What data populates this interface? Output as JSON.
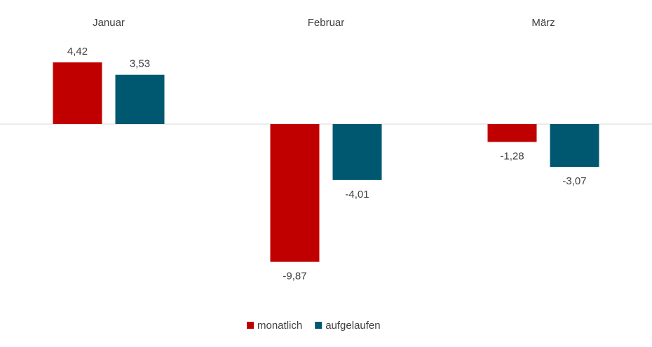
{
  "chart_data": {
    "type": "bar",
    "categories": [
      "Januar",
      "Februar",
      "März"
    ],
    "series": [
      {
        "name": "monatlich",
        "color": "#c00000",
        "values": [
          4.42,
          -9.87,
          -1.28
        ],
        "value_labels": [
          "4,42",
          "-9,87",
          "-1,28"
        ]
      },
      {
        "name": "aufgelaufen",
        "color": "#005870",
        "values": [
          3.53,
          -4.01,
          -3.07
        ],
        "value_labels": [
          "3,53",
          "-4,01",
          "-3,07"
        ]
      }
    ],
    "ylim": [
      -12,
      6
    ]
  }
}
